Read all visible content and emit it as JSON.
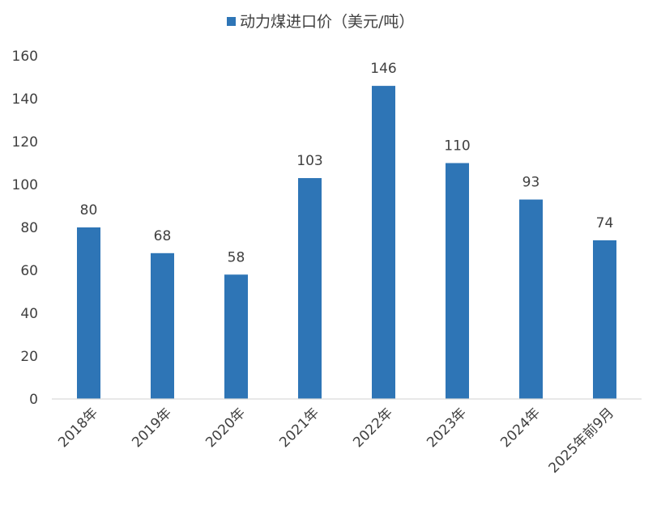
{
  "chart_data": {
    "type": "bar",
    "title": "",
    "xlabel": "",
    "ylabel": "",
    "categories": [
      "2018年",
      "2019年",
      "2020年",
      "2021年",
      "2022年",
      "2023年",
      "2024年",
      "2025年前9月"
    ],
    "series": [
      {
        "name": "动力煤进口价（美元/吨）",
        "values": [
          80,
          68,
          58,
          103,
          146,
          110,
          93,
          74
        ],
        "color": "#2E75B6"
      }
    ],
    "ylim": [
      0,
      160
    ],
    "yticks": [
      "0",
      "20",
      "40",
      "60",
      "80",
      "100",
      "120",
      "140",
      "160"
    ],
    "legend": "top-center",
    "grid": false,
    "data_labels": true
  }
}
